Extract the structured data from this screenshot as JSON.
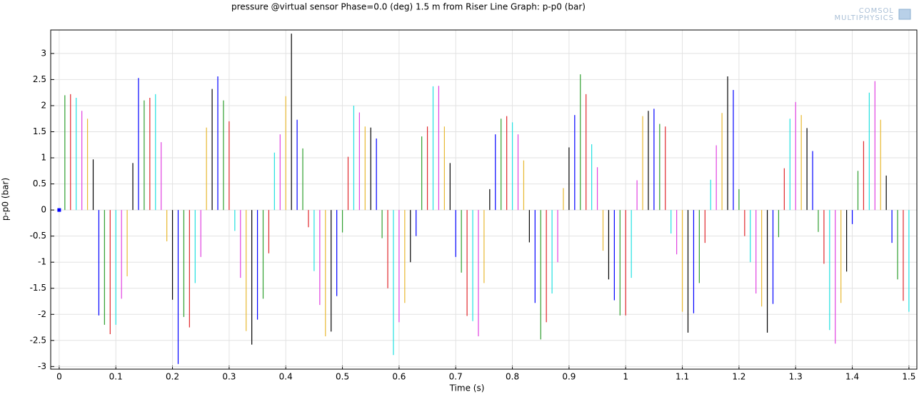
{
  "chart_data": {
    "type": "stem",
    "title": "pressure @virtual sensor Phase=0.0 (deg) 1.5 m from Riser   Line Graph: p-p0 (bar)",
    "xlabel": "Time (s)",
    "ylabel": "p-p0 (bar)",
    "watermark": [
      "COMSOL",
      "MULTIPHYSICS"
    ],
    "colors": [
      "#0000ff",
      "#2e9e2e",
      "#e0262b",
      "#20e0e0",
      "#e040e0",
      "#e8b830",
      "#000000"
    ],
    "grid": true,
    "xlim": [
      -0.015,
      1.514
    ],
    "ylim": [
      -3.05,
      3.45
    ],
    "xticks": [
      0,
      0.1,
      0.2,
      0.3,
      0.4,
      0.5,
      0.6,
      0.7,
      0.8,
      0.9,
      1,
      1.1,
      1.2,
      1.3,
      1.4,
      1.5
    ],
    "yticks": [
      -3,
      -2.5,
      -2,
      -1.5,
      -1,
      -0.5,
      0,
      0.5,
      1,
      1.5,
      2,
      2.5,
      3
    ],
    "x": [
      0,
      0.01,
      0.02,
      0.03,
      0.04,
      0.05,
      0.06,
      0.07,
      0.08,
      0.09,
      0.1,
      0.11,
      0.12,
      0.13,
      0.14,
      0.15,
      0.16,
      0.17,
      0.18,
      0.19,
      0.2,
      0.21,
      0.22,
      0.23,
      0.24,
      0.25,
      0.26,
      0.27,
      0.28,
      0.29,
      0.3,
      0.31,
      0.32,
      0.33,
      0.34,
      0.35,
      0.36,
      0.37,
      0.38,
      0.39,
      0.4,
      0.41,
      0.42,
      0.43,
      0.44,
      0.45,
      0.46,
      0.47,
      0.48,
      0.49,
      0.5,
      0.51,
      0.52,
      0.53,
      0.54,
      0.55,
      0.56,
      0.57,
      0.58,
      0.59,
      0.6,
      0.61,
      0.62,
      0.63,
      0.64,
      0.65,
      0.66,
      0.67,
      0.68,
      0.69,
      0.7,
      0.71,
      0.72,
      0.73,
      0.74,
      0.75,
      0.76,
      0.77,
      0.78,
      0.79,
      0.8,
      0.81,
      0.82,
      0.83,
      0.84,
      0.85,
      0.86,
      0.87,
      0.88,
      0.89,
      0.9,
      0.91,
      0.92,
      0.93,
      0.94,
      0.95,
      0.96,
      0.97,
      0.98,
      0.99,
      1,
      1.01,
      1.02,
      1.03,
      1.04,
      1.05,
      1.06,
      1.07,
      1.08,
      1.09,
      1.1,
      1.11,
      1.12,
      1.13,
      1.14,
      1.15,
      1.16,
      1.17,
      1.18,
      1.19,
      1.2,
      1.21,
      1.22,
      1.23,
      1.24,
      1.25,
      1.26,
      1.27,
      1.28,
      1.29,
      1.3,
      1.31,
      1.32,
      1.33,
      1.34,
      1.35,
      1.36,
      1.37,
      1.38,
      1.39,
      1.4,
      1.41,
      1.42,
      1.43,
      1.44,
      1.45,
      1.46,
      1.47,
      1.48,
      1.49,
      1.5
    ],
    "values": [
      0,
      2.2,
      2.22,
      2.15,
      1.9,
      1.75,
      0.97,
      -2.02,
      -2.2,
      -2.38,
      -2.2,
      -1.7,
      -1.27,
      0.9,
      2.53,
      2.1,
      2.15,
      2.22,
      1.3,
      -0.6,
      -1.72,
      -2.95,
      -2.05,
      -2.25,
      -1.4,
      -0.9,
      1.58,
      2.32,
      2.56,
      2.1,
      1.7,
      -0.4,
      -1.3,
      -2.32,
      -2.58,
      -2.1,
      -1.7,
      -0.83,
      1.1,
      1.45,
      2.18,
      3.38,
      1.73,
      1.18,
      -0.33,
      -1.17,
      -1.82,
      -2.42,
      -2.33,
      -1.65,
      -0.43,
      1.02,
      2.0,
      1.87,
      1.6,
      1.58,
      1.37,
      -0.54,
      -1.5,
      -2.78,
      -2.15,
      -1.78,
      -1.0,
      -0.5,
      1.41,
      1.6,
      2.37,
      2.38,
      1.6,
      0.9,
      -0.9,
      -1.2,
      -2.03,
      -2.13,
      -2.42,
      -1.4,
      0.4,
      1.45,
      1.75,
      1.8,
      1.68,
      1.45,
      0.95,
      -0.62,
      -1.78,
      -2.48,
      -2.15,
      -1.6,
      -1.0,
      0.42,
      1.2,
      1.82,
      2.6,
      2.22,
      1.26,
      0.82,
      -0.78,
      -1.33,
      -1.73,
      -2.02,
      -2.02,
      -1.3,
      0.57,
      1.8,
      1.9,
      1.94,
      1.65,
      1.6,
      -0.45,
      -0.85,
      -1.95,
      -2.35,
      -1.98,
      -1.4,
      -0.63,
      0.58,
      1.24,
      1.86,
      2.56,
      2.3,
      0.4,
      -0.5,
      -1.0,
      -1.6,
      -1.85,
      -2.35,
      -1.8,
      -0.52,
      0.8,
      1.75,
      2.07,
      1.82,
      1.57,
      1.13,
      -0.42,
      -1.03,
      -2.3,
      -2.56,
      -1.78,
      -1.18,
      -0.27,
      0.75,
      1.32,
      2.25,
      2.47,
      1.73,
      0.66,
      -0.63,
      -1.33,
      -1.74,
      -1.95
    ]
  }
}
